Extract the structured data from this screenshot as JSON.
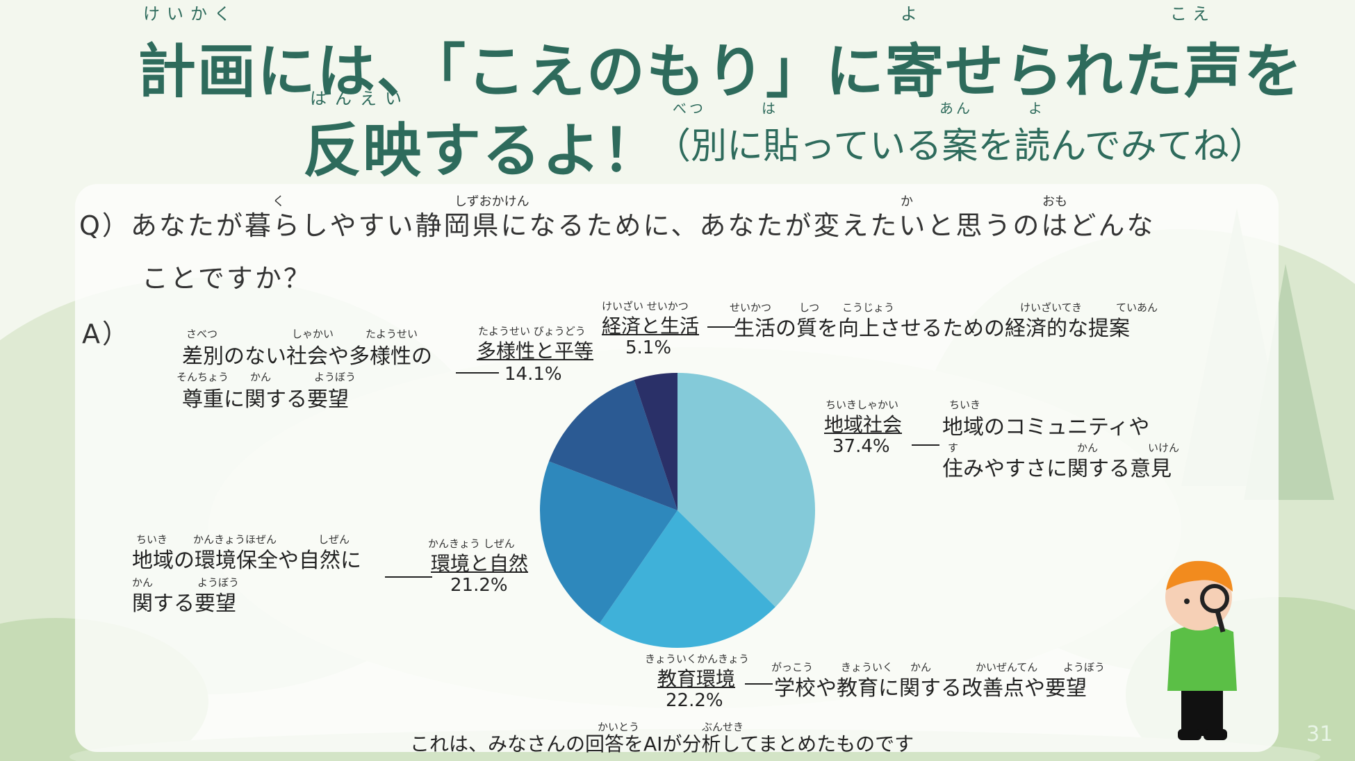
{
  "title": {
    "line1": "計画には、「こえのもり」に寄せられた声を",
    "line2": "反映するよ！",
    "line2_sub": "（別に貼っている案を読んでみてね）",
    "furigana": {
      "keikaku": "けいかく",
      "yo": "よ",
      "koe": "こえ",
      "hanei": "はんえい",
      "betsu": "べつ",
      "ha": "は",
      "an": "あん",
      "yo2": "よ"
    }
  },
  "question": {
    "line1": "Q）あなたが暮らしやすい静岡県になるために、あなたが変えたいと思うのはどんな",
    "line2": "ことですか？",
    "furigana": {
      "ku": "く",
      "shizuokaken": "しずおかけん",
      "ka": "か",
      "omo": "おも"
    }
  },
  "answer_label": "A）",
  "footer": "これは、みなさんの回答をAIが分析してまとめたものです",
  "footer_furigana": {
    "kaitou": "かいとう",
    "bunseki": "ぶんせき"
  },
  "page_number": "31",
  "chart_data": {
    "type": "pie",
    "title": "",
    "categories": [
      "地域社会",
      "教育環境",
      "環境と自然",
      "多様性と平等",
      "経済と生活"
    ],
    "values": [
      37.4,
      22.2,
      21.2,
      14.1,
      5.1
    ],
    "colors": [
      "#84cad9",
      "#3fb1d9",
      "#2e88bc",
      "#2b5a93",
      "#2a3068"
    ],
    "start_angle_deg": 0,
    "direction": "clockwise",
    "labels": [
      {
        "category": "地域社会",
        "category_ruby": "ちいきしゃかい",
        "percent": "37.4%",
        "desc1": "地域のコミュニティや",
        "desc2": "住みやすさに関する意見",
        "ruby": [
          "ちいき",
          "す",
          "かん",
          "いけん"
        ]
      },
      {
        "category": "教育環境",
        "category_ruby": "きょういくかんきょう",
        "percent": "22.2%",
        "desc1": "学校や教育に関する改善点や要望",
        "ruby": [
          "がっこう",
          "きょういく",
          "かん",
          "かいぜんてん",
          "ようぼう"
        ]
      },
      {
        "category": "環境と自然",
        "category_ruby": "かんきょう しぜん",
        "percent": "21.2%",
        "desc1": "地域の環境保全や自然に",
        "desc2": "関する要望",
        "ruby": [
          "ちいき",
          "かんきょうほぜん",
          "しぜん",
          "かん",
          "ようぼう"
        ]
      },
      {
        "category": "多様性と平等",
        "category_ruby": "たようせい びょうどう",
        "percent": "14.1%",
        "desc1": "差別のない社会や多様性の",
        "desc2": "尊重に関する要望",
        "ruby": [
          "さべつ",
          "しゃかい",
          "たようせい",
          "そんちょう",
          "かん",
          "ようぼう"
        ]
      },
      {
        "category": "経済と生活",
        "category_ruby": "けいざい せいかつ",
        "percent": "5.1%",
        "desc1": "生活の質を向上させるための経済的な提案",
        "ruby": [
          "せいかつ",
          "しつ",
          "こうじょう",
          "けいざいてき",
          "ていあん"
        ]
      }
    ]
  }
}
